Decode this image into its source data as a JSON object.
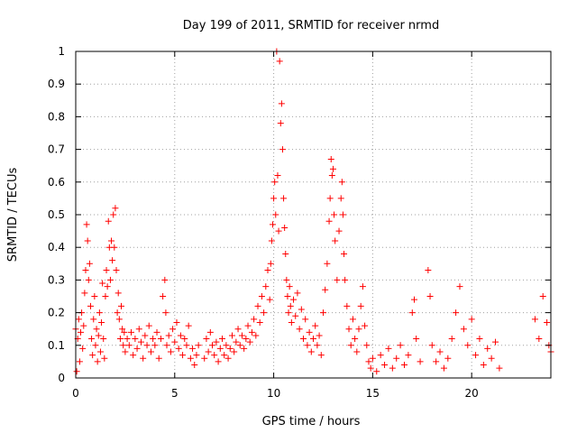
{
  "chart_data": {
    "type": "scatter",
    "title": "Day 199 of 2011, SRMTID for receiver nrmd",
    "xlabel": "GPS time / hours",
    "ylabel": "SRMTID / TECUs",
    "xlim": [
      0,
      24
    ],
    "ylim": [
      0,
      1
    ],
    "xticks": [
      0,
      5,
      10,
      15,
      20
    ],
    "xtick_labels": [
      "0",
      "5",
      "10",
      "15",
      "20"
    ],
    "yticks": [
      0,
      0.1,
      0.2,
      0.3,
      0.4,
      0.5,
      0.6,
      0.7,
      0.8,
      0.9,
      1
    ],
    "ytick_labels": [
      "0",
      "0.1",
      "0.2",
      "0.3",
      "0.4",
      "0.5",
      "0.6",
      "0.7",
      "0.8",
      "0.9",
      "1"
    ],
    "grid": true,
    "marker": "+",
    "series": [
      {
        "name": "SRMTID",
        "color": "#ff0000",
        "points": [
          [
            0.0,
            0.15
          ],
          [
            0.05,
            0.02
          ],
          [
            0.1,
            0.12
          ],
          [
            0.15,
            0.18
          ],
          [
            0.2,
            0.05
          ],
          [
            0.25,
            0.14
          ],
          [
            0.3,
            0.2
          ],
          [
            0.35,
            0.09
          ],
          [
            0.4,
            0.16
          ],
          [
            0.45,
            0.26
          ],
          [
            0.5,
            0.33
          ],
          [
            0.55,
            0.47
          ],
          [
            0.6,
            0.42
          ],
          [
            0.65,
            0.3
          ],
          [
            0.7,
            0.35
          ],
          [
            0.75,
            0.22
          ],
          [
            0.8,
            0.12
          ],
          [
            0.85,
            0.07
          ],
          [
            0.9,
            0.18
          ],
          [
            0.95,
            0.25
          ],
          [
            1.0,
            0.1
          ],
          [
            1.05,
            0.15
          ],
          [
            1.1,
            0.05
          ],
          [
            1.15,
            0.13
          ],
          [
            1.2,
            0.2
          ],
          [
            1.25,
            0.08
          ],
          [
            1.3,
            0.17
          ],
          [
            1.35,
            0.29
          ],
          [
            1.4,
            0.12
          ],
          [
            1.45,
            0.06
          ],
          [
            1.5,
            0.25
          ],
          [
            1.55,
            0.33
          ],
          [
            1.6,
            0.28
          ],
          [
            1.65,
            0.48
          ],
          [
            1.7,
            0.4
          ],
          [
            1.75,
            0.3
          ],
          [
            1.8,
            0.42
          ],
          [
            1.85,
            0.36
          ],
          [
            1.9,
            0.5
          ],
          [
            1.95,
            0.4
          ],
          [
            2.0,
            0.52
          ],
          [
            2.05,
            0.33
          ],
          [
            2.1,
            0.2
          ],
          [
            2.15,
            0.26
          ],
          [
            2.2,
            0.18
          ],
          [
            2.25,
            0.12
          ],
          [
            2.3,
            0.22
          ],
          [
            2.35,
            0.15
          ],
          [
            2.4,
            0.1
          ],
          [
            2.45,
            0.14
          ],
          [
            2.5,
            0.08
          ],
          [
            2.6,
            0.12
          ],
          [
            2.7,
            0.1
          ],
          [
            2.8,
            0.14
          ],
          [
            2.9,
            0.07
          ],
          [
            3.0,
            0.12
          ],
          [
            3.1,
            0.09
          ],
          [
            3.2,
            0.15
          ],
          [
            3.3,
            0.11
          ],
          [
            3.4,
            0.06
          ],
          [
            3.5,
            0.13
          ],
          [
            3.6,
            0.1
          ],
          [
            3.7,
            0.16
          ],
          [
            3.8,
            0.08
          ],
          [
            3.9,
            0.12
          ],
          [
            4.0,
            0.1
          ],
          [
            4.1,
            0.14
          ],
          [
            4.2,
            0.06
          ],
          [
            4.3,
            0.12
          ],
          [
            4.4,
            0.25
          ],
          [
            4.5,
            0.3
          ],
          [
            4.55,
            0.2
          ],
          [
            4.6,
            0.1
          ],
          [
            4.7,
            0.13
          ],
          [
            4.8,
            0.08
          ],
          [
            4.9,
            0.15
          ],
          [
            5.0,
            0.11
          ],
          [
            5.1,
            0.17
          ],
          [
            5.2,
            0.09
          ],
          [
            5.3,
            0.13
          ],
          [
            5.4,
            0.07
          ],
          [
            5.5,
            0.12
          ],
          [
            5.6,
            0.1
          ],
          [
            5.7,
            0.16
          ],
          [
            5.8,
            0.06
          ],
          [
            5.9,
            0.09
          ],
          [
            6.0,
            0.04
          ],
          [
            6.1,
            0.07
          ],
          [
            6.2,
            0.1
          ],
          [
            6.5,
            0.06
          ],
          [
            6.6,
            0.12
          ],
          [
            6.7,
            0.08
          ],
          [
            6.8,
            0.14
          ],
          [
            6.9,
            0.1
          ],
          [
            7.0,
            0.07
          ],
          [
            7.1,
            0.11
          ],
          [
            7.2,
            0.05
          ],
          [
            7.3,
            0.09
          ],
          [
            7.4,
            0.12
          ],
          [
            7.5,
            0.07
          ],
          [
            7.6,
            0.1
          ],
          [
            7.7,
            0.06
          ],
          [
            7.8,
            0.09
          ],
          [
            7.9,
            0.13
          ],
          [
            8.0,
            0.08
          ],
          [
            8.1,
            0.11
          ],
          [
            8.2,
            0.15
          ],
          [
            8.3,
            0.1
          ],
          [
            8.4,
            0.13
          ],
          [
            8.5,
            0.09
          ],
          [
            8.6,
            0.12
          ],
          [
            8.7,
            0.16
          ],
          [
            8.8,
            0.11
          ],
          [
            8.9,
            0.14
          ],
          [
            9.0,
            0.18
          ],
          [
            9.1,
            0.13
          ],
          [
            9.2,
            0.22
          ],
          [
            9.3,
            0.17
          ],
          [
            9.4,
            0.25
          ],
          [
            9.5,
            0.2
          ],
          [
            9.6,
            0.28
          ],
          [
            9.7,
            0.33
          ],
          [
            9.8,
            0.24
          ],
          [
            9.85,
            0.35
          ],
          [
            9.9,
            0.42
          ],
          [
            9.95,
            0.47
          ],
          [
            10.0,
            0.55
          ],
          [
            10.05,
            0.6
          ],
          [
            10.1,
            0.5
          ],
          [
            10.15,
            1.0
          ],
          [
            10.2,
            0.62
          ],
          [
            10.25,
            0.45
          ],
          [
            10.3,
            0.97
          ],
          [
            10.35,
            0.78
          ],
          [
            10.4,
            0.84
          ],
          [
            10.45,
            0.7
          ],
          [
            10.5,
            0.55
          ],
          [
            10.55,
            0.46
          ],
          [
            10.6,
            0.38
          ],
          [
            10.65,
            0.3
          ],
          [
            10.7,
            0.25
          ],
          [
            10.75,
            0.2
          ],
          [
            10.8,
            0.28
          ],
          [
            10.85,
            0.22
          ],
          [
            10.9,
            0.17
          ],
          [
            11.0,
            0.24
          ],
          [
            11.1,
            0.19
          ],
          [
            11.2,
            0.26
          ],
          [
            11.3,
            0.15
          ],
          [
            11.4,
            0.21
          ],
          [
            11.5,
            0.12
          ],
          [
            11.6,
            0.18
          ],
          [
            11.7,
            0.1
          ],
          [
            11.8,
            0.14
          ],
          [
            11.9,
            0.08
          ],
          [
            12.0,
            0.12
          ],
          [
            12.1,
            0.16
          ],
          [
            12.2,
            0.1
          ],
          [
            12.3,
            0.13
          ],
          [
            12.4,
            0.07
          ],
          [
            12.5,
            0.2
          ],
          [
            12.6,
            0.27
          ],
          [
            12.7,
            0.35
          ],
          [
            12.8,
            0.48
          ],
          [
            12.85,
            0.55
          ],
          [
            12.9,
            0.67
          ],
          [
            12.95,
            0.62
          ],
          [
            13.0,
            0.64
          ],
          [
            13.05,
            0.5
          ],
          [
            13.1,
            0.42
          ],
          [
            13.2,
            0.3
          ],
          [
            13.3,
            0.45
          ],
          [
            13.4,
            0.55
          ],
          [
            13.45,
            0.6
          ],
          [
            13.5,
            0.5
          ],
          [
            13.55,
            0.38
          ],
          [
            13.6,
            0.3
          ],
          [
            13.7,
            0.22
          ],
          [
            13.8,
            0.15
          ],
          [
            13.9,
            0.1
          ],
          [
            14.0,
            0.18
          ],
          [
            14.1,
            0.12
          ],
          [
            14.2,
            0.08
          ],
          [
            14.3,
            0.15
          ],
          [
            14.4,
            0.22
          ],
          [
            14.5,
            0.28
          ],
          [
            14.6,
            0.16
          ],
          [
            14.7,
            0.1
          ],
          [
            14.8,
            0.05
          ],
          [
            14.9,
            0.03
          ],
          [
            15.0,
            0.06
          ],
          [
            15.2,
            0.02
          ],
          [
            15.4,
            0.07
          ],
          [
            15.6,
            0.04
          ],
          [
            15.8,
            0.09
          ],
          [
            16.0,
            0.03
          ],
          [
            16.2,
            0.06
          ],
          [
            16.4,
            0.1
          ],
          [
            16.6,
            0.04
          ],
          [
            16.8,
            0.07
          ],
          [
            17.0,
            0.2
          ],
          [
            17.1,
            0.24
          ],
          [
            17.2,
            0.12
          ],
          [
            17.4,
            0.05
          ],
          [
            17.8,
            0.33
          ],
          [
            17.9,
            0.25
          ],
          [
            18.0,
            0.1
          ],
          [
            18.2,
            0.05
          ],
          [
            18.4,
            0.08
          ],
          [
            18.6,
            0.03
          ],
          [
            18.8,
            0.06
          ],
          [
            19.0,
            0.12
          ],
          [
            19.2,
            0.2
          ],
          [
            19.4,
            0.28
          ],
          [
            19.6,
            0.15
          ],
          [
            19.8,
            0.1
          ],
          [
            20.0,
            0.18
          ],
          [
            20.2,
            0.07
          ],
          [
            20.4,
            0.12
          ],
          [
            20.6,
            0.04
          ],
          [
            20.8,
            0.09
          ],
          [
            21.0,
            0.06
          ],
          [
            21.2,
            0.11
          ],
          [
            21.4,
            0.03
          ],
          [
            23.2,
            0.18
          ],
          [
            23.4,
            0.12
          ],
          [
            23.6,
            0.25
          ],
          [
            23.8,
            0.17
          ],
          [
            23.9,
            0.1
          ],
          [
            24.0,
            0.08
          ]
        ]
      }
    ]
  }
}
